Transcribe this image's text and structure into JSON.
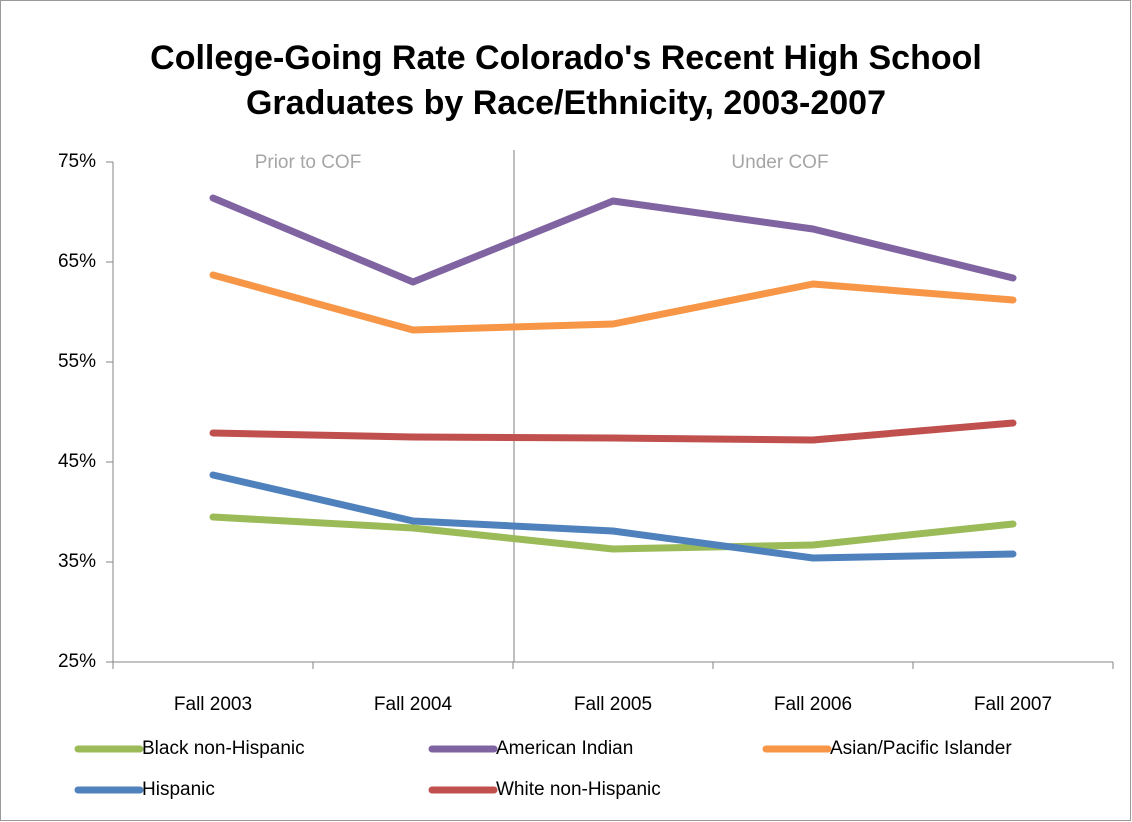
{
  "chart_data": {
    "type": "line",
    "title": [
      "College-Going Rate Colorado's Recent High School",
      "Graduates by Race/Ethnicity, 2003-2007"
    ],
    "annotations": [
      "Prior to COF",
      "Under COF"
    ],
    "categories": [
      "Fall 2003",
      "Fall 2004",
      "Fall 2005",
      "Fall 2006",
      "Fall 2007"
    ],
    "series": [
      {
        "name": "Black non-Hispanic",
        "color": "#9bbb59",
        "values": [
          39.5,
          38.4,
          36.3,
          36.7,
          38.8
        ]
      },
      {
        "name": "American Indian",
        "color": "#8064a2",
        "values": [
          71.4,
          63.0,
          71.1,
          68.3,
          63.4
        ]
      },
      {
        "name": "Asian/Pacific Islander",
        "color": "#f79646",
        "values": [
          63.7,
          58.2,
          58.8,
          62.8,
          61.2
        ]
      },
      {
        "name": "Hispanic",
        "color": "#4f81bd",
        "values": [
          43.7,
          39.1,
          38.1,
          35.4,
          35.8
        ]
      },
      {
        "name": "White non-Hispanic",
        "color": "#c0504d",
        "values": [
          47.9,
          47.5,
          47.4,
          47.2,
          48.9
        ]
      }
    ],
    "ylim": [
      25,
      75
    ],
    "yticks": [
      {
        "value": 25,
        "label": "25%"
      },
      {
        "value": 35,
        "label": "35%"
      },
      {
        "value": 45,
        "label": "45%"
      },
      {
        "value": 55,
        "label": "55%"
      },
      {
        "value": 65,
        "label": "65%"
      },
      {
        "value": 75,
        "label": "75%"
      }
    ],
    "grid": false,
    "legend": "bottom"
  }
}
